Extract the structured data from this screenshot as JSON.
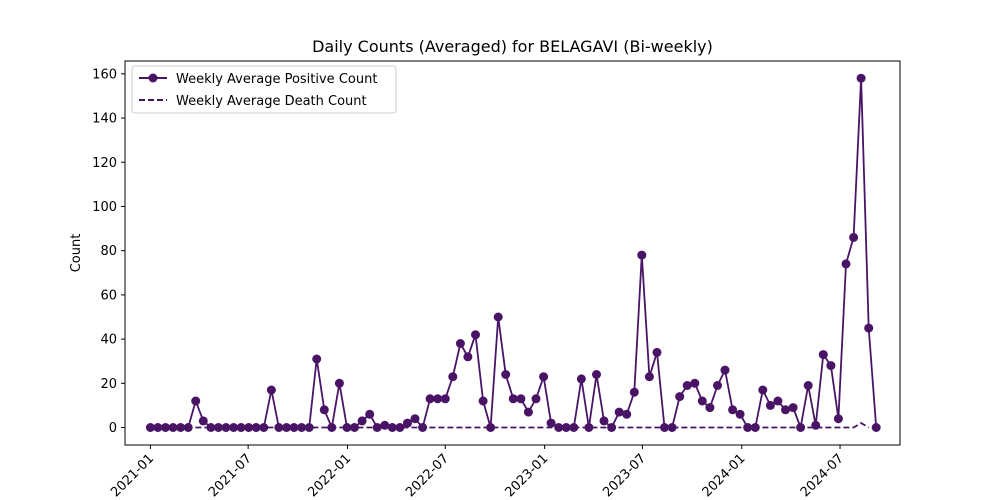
{
  "chart_data": {
    "type": "line",
    "title": "Daily Counts (Averaged) for BELAGAVI (Bi-weekly)",
    "xlabel": "",
    "ylabel": "Count",
    "x_ticks": [
      "2021-01",
      "2021-07",
      "2022-01",
      "2022-07",
      "2023-01",
      "2023-07",
      "2024-01",
      "2024-07"
    ],
    "y_ticks": [
      0,
      20,
      40,
      60,
      80,
      100,
      120,
      140,
      160
    ],
    "xlim": [
      "2020-11-15",
      "2024-10-20"
    ],
    "ylim": [
      -7.9,
      165.8
    ],
    "grid": false,
    "legend_position": "top-left",
    "x": [
      "2021-01-01",
      "2021-01-15",
      "2021-01-29",
      "2021-02-12",
      "2021-02-26",
      "2021-03-12",
      "2021-03-26",
      "2021-04-09",
      "2021-04-23",
      "2021-05-07",
      "2021-05-21",
      "2021-06-04",
      "2021-06-18",
      "2021-07-02",
      "2021-07-16",
      "2021-07-30",
      "2021-08-13",
      "2021-08-27",
      "2021-09-10",
      "2021-09-24",
      "2021-10-08",
      "2021-10-22",
      "2021-11-05",
      "2021-11-19",
      "2021-12-03",
      "2021-12-17",
      "2021-12-31",
      "2022-01-14",
      "2022-01-28",
      "2022-02-11",
      "2022-02-25",
      "2022-03-11",
      "2022-03-25",
      "2022-04-08",
      "2022-04-22",
      "2022-05-06",
      "2022-05-20",
      "2022-06-03",
      "2022-06-17",
      "2022-07-01",
      "2022-07-15",
      "2022-07-29",
      "2022-08-12",
      "2022-08-26",
      "2022-09-09",
      "2022-09-23",
      "2022-10-07",
      "2022-10-21",
      "2022-11-04",
      "2022-11-18",
      "2022-12-02",
      "2022-12-16",
      "2022-12-30",
      "2023-01-13",
      "2023-01-27",
      "2023-02-10",
      "2023-02-24",
      "2023-03-10",
      "2023-03-24",
      "2023-04-07",
      "2023-04-21",
      "2023-05-05",
      "2023-05-19",
      "2023-06-02",
      "2023-06-16",
      "2023-06-30",
      "2023-07-14",
      "2023-07-28",
      "2023-08-11",
      "2023-08-25",
      "2023-09-08",
      "2023-09-22",
      "2023-10-06",
      "2023-10-20",
      "2023-11-03",
      "2023-11-17",
      "2023-12-01",
      "2023-12-15",
      "2023-12-29",
      "2024-01-12",
      "2024-01-26",
      "2024-02-09",
      "2024-02-23",
      "2024-03-08",
      "2024-03-22",
      "2024-04-05",
      "2024-04-19",
      "2024-05-03",
      "2024-05-17",
      "2024-05-31",
      "2024-06-14",
      "2024-06-28",
      "2024-07-12",
      "2024-07-26",
      "2024-08-09",
      "2024-08-23",
      "2024-09-06",
      "2024-09-20",
      "2024-10-04"
    ],
    "series": [
      {
        "name": "Weekly Average Positive Count",
        "color": "#4a1466",
        "style": "solid-markers",
        "values": [
          0,
          0,
          0,
          0,
          0,
          0,
          12,
          3,
          0,
          0,
          0,
          0,
          0,
          0,
          0,
          0,
          17,
          0,
          0,
          0,
          0,
          0,
          31,
          8,
          0,
          20,
          0,
          0,
          3,
          6,
          0,
          1,
          0,
          0,
          2,
          4,
          0,
          13,
          13,
          13,
          23,
          38,
          32,
          42,
          12,
          0,
          50,
          24,
          13,
          13,
          7,
          13,
          23,
          2,
          0,
          0,
          0,
          22,
          0,
          24,
          3,
          0,
          7,
          6,
          16,
          78,
          23,
          34,
          0,
          0,
          14,
          19,
          20,
          12,
          9,
          19,
          26,
          8,
          6,
          0,
          0,
          17,
          10,
          12,
          8,
          9,
          0,
          19,
          1,
          33,
          28,
          4,
          74,
          86,
          158,
          45,
          0,
          null,
          null
        ]
      },
      {
        "name": "Weekly Average Death Count",
        "color": "#4a1466",
        "style": "dashed",
        "values": [
          0,
          0,
          0,
          0,
          0,
          0,
          0,
          0,
          0,
          0,
          0,
          0,
          0,
          0,
          0,
          0,
          0,
          0,
          0,
          0,
          0,
          0,
          0,
          0,
          0,
          0,
          0,
          0,
          0,
          0,
          0,
          0,
          0,
          0,
          0,
          0,
          0,
          0,
          0,
          0,
          0,
          0,
          0,
          0,
          0,
          0,
          0,
          0,
          0,
          0,
          0,
          0,
          0,
          0,
          0,
          0,
          0,
          0,
          0,
          0,
          0,
          0,
          0,
          0,
          0,
          0,
          0,
          0,
          0,
          0,
          0,
          0,
          0,
          0,
          0,
          0,
          0,
          0,
          0,
          0,
          0,
          0,
          0,
          0,
          0,
          0,
          0,
          0,
          0,
          0,
          0,
          0,
          0,
          0,
          2,
          0,
          null,
          null,
          null
        ]
      }
    ]
  }
}
